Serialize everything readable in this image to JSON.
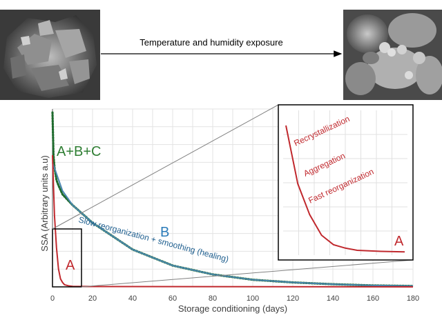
{
  "header": {
    "arrow_label": "Temperature and humidity exposure"
  },
  "chart_data": {
    "type": "line",
    "xlabel": "Storage conditioning (days)",
    "ylabel": "SSA (Arbitrary units a.u)",
    "xlim": [
      0,
      180
    ],
    "ylim": [
      0,
      1
    ],
    "x_ticks": [
      0,
      20,
      40,
      60,
      80,
      100,
      120,
      140,
      160,
      180
    ],
    "grid": true,
    "series": [
      {
        "name": "A+B+C",
        "style": "dotted",
        "color": "#1f6b2e",
        "x": [
          0,
          0.5,
          1,
          2,
          3,
          5,
          10,
          20,
          40,
          60,
          80,
          100,
          120,
          140,
          160,
          180
        ],
        "y": [
          0.98,
          0.74,
          0.67,
          0.6,
          0.57,
          0.52,
          0.46,
          0.36,
          0.21,
          0.12,
          0.07,
          0.04,
          0.025,
          0.015,
          0.008,
          0.005
        ]
      },
      {
        "name": "B",
        "style": "solid",
        "color": "#4a86b0",
        "x": [
          0,
          5,
          10,
          20,
          40,
          60,
          80,
          100,
          120,
          140,
          160,
          180
        ],
        "y": [
          0.7,
          0.54,
          0.46,
          0.36,
          0.21,
          0.12,
          0.07,
          0.04,
          0.025,
          0.015,
          0.008,
          0.005
        ]
      },
      {
        "name": "A",
        "style": "solid",
        "color": "#c0282d",
        "x": [
          0,
          1,
          2,
          3,
          4,
          5,
          6,
          8,
          10,
          20,
          180
        ],
        "y": [
          0.74,
          0.4,
          0.22,
          0.1,
          0.045,
          0.025,
          0.012,
          0.006,
          0.003,
          0.002,
          0.0
        ]
      }
    ],
    "annotations": {
      "curve_b_text": "Slow reorganization + smoothing (healing)",
      "label_abc": "A+B+C",
      "label_b": "B",
      "label_a": "A"
    },
    "inset": {
      "series_name": "A",
      "x": [
        0,
        1,
        2,
        3,
        4,
        5,
        6,
        8,
        10
      ],
      "y": [
        0.74,
        0.4,
        0.22,
        0.1,
        0.045,
        0.025,
        0.012,
        0.006,
        0.003
      ],
      "labels": [
        "Recrystallization",
        "Aggregation",
        "Fast reorganization"
      ],
      "corner_label": "A"
    }
  }
}
